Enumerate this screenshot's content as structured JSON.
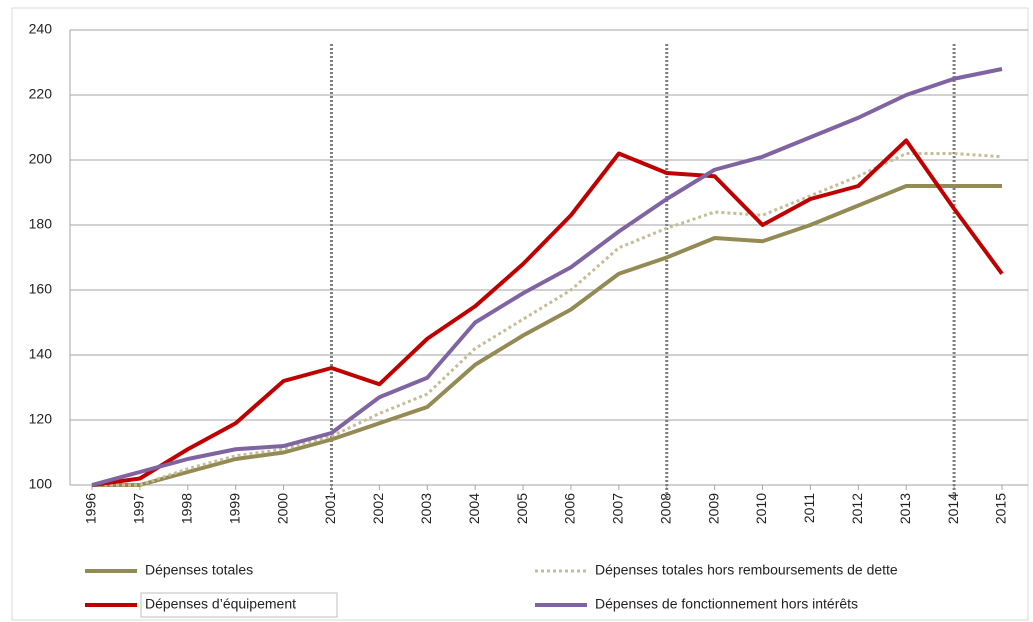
{
  "chart_data": {
    "type": "line",
    "categories": [
      "1996",
      "1997",
      "1998",
      "1999",
      "2000",
      "2001",
      "2002",
      "2003",
      "2004",
      "2005",
      "2006",
      "2007",
      "2008",
      "2009",
      "2010",
      "2011",
      "2012",
      "2013",
      "2014",
      "2015"
    ],
    "series": [
      {
        "name": "Dépenses totales",
        "color": "#948a54",
        "style": "solid",
        "values": [
          100,
          100,
          104,
          108,
          110,
          114,
          119,
          124,
          137,
          146,
          154,
          165,
          170,
          176,
          175,
          180,
          186,
          192,
          192,
          192
        ]
      },
      {
        "name": "Dépenses totales hors remboursements de dette",
        "color": "#c4bd97",
        "style": "dotted",
        "values": [
          100,
          100,
          105,
          109,
          111,
          115,
          122,
          128,
          142,
          151,
          160,
          173,
          179,
          184,
          183,
          189,
          195,
          202,
          202,
          201
        ]
      },
      {
        "name": "Dépenses d’équipement",
        "color": "#c00000",
        "style": "solid",
        "values": [
          100,
          102,
          111,
          119,
          132,
          136,
          131,
          145,
          155,
          168,
          183,
          202,
          196,
          195,
          180,
          188,
          192,
          206,
          185,
          165
        ]
      },
      {
        "name": "Dépenses de fonctionnement hors intérêts",
        "color": "#8064a2",
        "style": "solid",
        "values": [
          100,
          104,
          108,
          111,
          112,
          116,
          127,
          133,
          150,
          159,
          167,
          178,
          188,
          197,
          201,
          207,
          213,
          220,
          225,
          228
        ]
      }
    ],
    "vlines": [
      "2001",
      "2008",
      "2014"
    ],
    "ylim": [
      100,
      240
    ],
    "yticks": [
      100,
      120,
      140,
      160,
      180,
      200,
      220,
      240
    ],
    "grid": true
  }
}
